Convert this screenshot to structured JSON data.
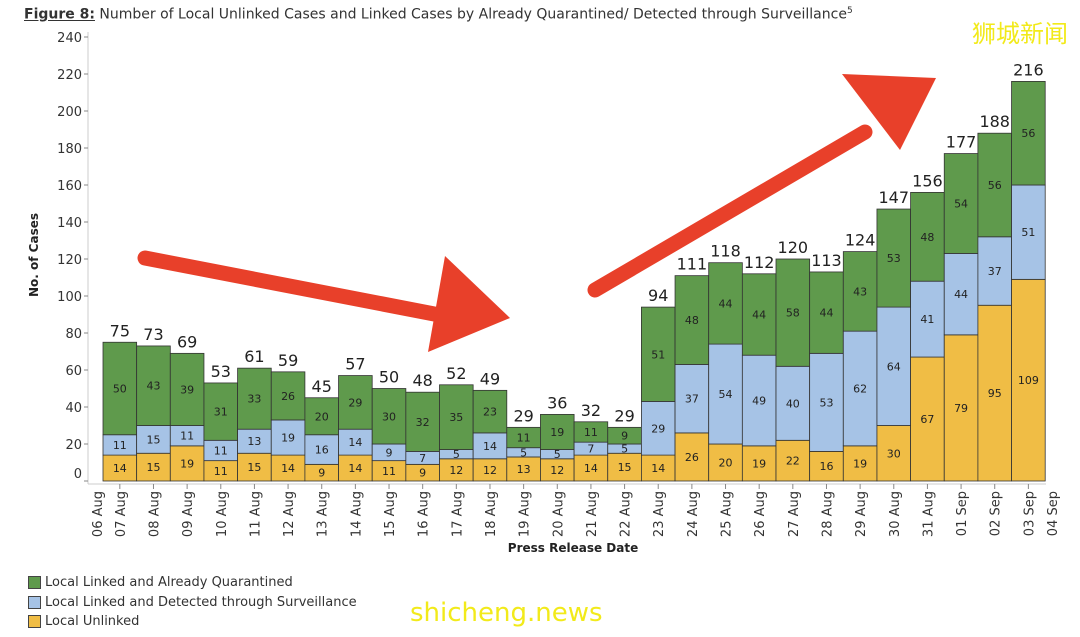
{
  "title": {
    "prefix": "Figure 8:",
    "text": " Number of Local Unlinked Cases and Linked Cases by Already Quarantined/ Detected through Surveillance",
    "superscript": "5"
  },
  "watermarks": {
    "top_right": "狮城新闻",
    "bottom_left": "shicheng.news"
  },
  "chart_data": {
    "type": "bar",
    "stacked": true,
    "xlabel": "Press Release Date",
    "ylabel": "No. of Cases",
    "ylim": [
      0,
      240
    ],
    "yticks": [
      0,
      20,
      40,
      60,
      80,
      100,
      120,
      140,
      160,
      180,
      200,
      220,
      240
    ],
    "xticks": [
      "06 Aug",
      "07 Aug",
      "08 Aug",
      "09 Aug",
      "10 Aug",
      "11 Aug",
      "12 Aug",
      "13 Aug",
      "14 Aug",
      "15 Aug",
      "16 Aug",
      "17 Aug",
      "18 Aug",
      "19 Aug",
      "20 Aug",
      "21 Aug",
      "22 Aug",
      "23 Aug",
      "24 Aug",
      "25 Aug",
      "26 Aug",
      "27 Aug",
      "28 Aug",
      "29 Aug",
      "30 Aug",
      "31 Aug",
      "01 Sep",
      "02 Sep",
      "03 Sep",
      "04 Sep"
    ],
    "categories": [
      "07 Aug",
      "08 Aug",
      "09 Aug",
      "10 Aug",
      "11 Aug",
      "12 Aug",
      "13 Aug",
      "14 Aug",
      "15 Aug",
      "16 Aug",
      "17 Aug",
      "18 Aug",
      "19 Aug",
      "20 Aug",
      "21 Aug",
      "22 Aug",
      "23 Aug",
      "24 Aug",
      "25 Aug",
      "26 Aug",
      "27 Aug",
      "28 Aug",
      "29 Aug",
      "30 Aug",
      "31 Aug",
      "01 Sep",
      "02 Sep",
      "03 Sep"
    ],
    "series": [
      {
        "name": "Local Unlinked",
        "color": "#f0bd45",
        "values": [
          14,
          15,
          19,
          11,
          15,
          14,
          9,
          14,
          11,
          9,
          12,
          12,
          13,
          12,
          14,
          15,
          14,
          26,
          20,
          19,
          22,
          16,
          19,
          30,
          67,
          79,
          95,
          109
        ]
      },
      {
        "name": "Local Linked and Detected through Surveillance",
        "color": "#a6c3e6",
        "values": [
          11,
          15,
          11,
          11,
          13,
          19,
          16,
          14,
          9,
          7,
          5,
          14,
          5,
          5,
          7,
          5,
          29,
          37,
          54,
          49,
          40,
          53,
          62,
          64,
          41,
          44,
          37,
          51
        ]
      },
      {
        "name": "Local Linked and Already Quarantined",
        "color": "#5f9a4c",
        "values": [
          50,
          43,
          39,
          31,
          33,
          26,
          20,
          29,
          30,
          32,
          35,
          23,
          11,
          19,
          11,
          9,
          51,
          48,
          44,
          44,
          58,
          44,
          43,
          53,
          48,
          54,
          56,
          56
        ]
      }
    ],
    "totals": [
      75,
      73,
      69,
      53,
      61,
      59,
      45,
      57,
      50,
      48,
      52,
      49,
      29,
      36,
      32,
      29,
      94,
      111,
      118,
      112,
      120,
      113,
      124,
      147,
      156,
      177,
      188,
      216
    ],
    "legend_position": "bottom-left",
    "legend_order": [
      2,
      1,
      0
    ],
    "annotation_color": "#e8402a",
    "grid": false
  }
}
